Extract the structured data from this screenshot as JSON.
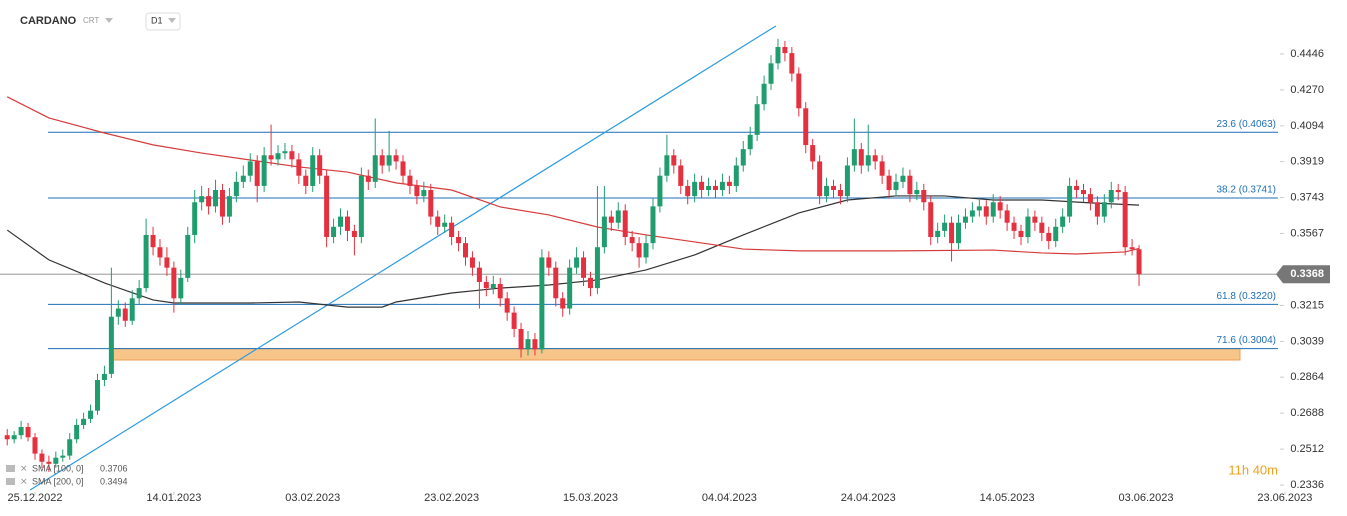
{
  "header": {
    "symbol": "CARDANO",
    "source": "CRT",
    "interval": "D1"
  },
  "chart_data": {
    "type": "candlestick",
    "up_color": "#1f9d6e",
    "down_color": "#e5303f",
    "ohlc": [
      [
        0.258,
        0.261,
        0.253,
        0.256
      ],
      [
        0.256,
        0.26,
        0.254,
        0.258
      ],
      [
        0.258,
        0.265,
        0.256,
        0.262
      ],
      [
        0.262,
        0.264,
        0.255,
        0.257
      ],
      [
        0.257,
        0.259,
        0.246,
        0.249
      ],
      [
        0.249,
        0.251,
        0.242,
        0.245
      ],
      [
        0.245,
        0.248,
        0.24,
        0.244
      ],
      [
        0.244,
        0.25,
        0.242,
        0.247
      ],
      [
        0.247,
        0.251,
        0.245,
        0.248
      ],
      [
        0.248,
        0.259,
        0.246,
        0.256
      ],
      [
        0.256,
        0.266,
        0.254,
        0.263
      ],
      [
        0.263,
        0.269,
        0.261,
        0.266
      ],
      [
        0.266,
        0.273,
        0.264,
        0.27
      ],
      [
        0.27,
        0.288,
        0.268,
        0.285
      ],
      [
        0.285,
        0.292,
        0.282,
        0.288
      ],
      [
        0.288,
        0.34,
        0.286,
        0.316
      ],
      [
        0.316,
        0.324,
        0.312,
        0.32
      ],
      [
        0.32,
        0.323,
        0.311,
        0.314
      ],
      [
        0.314,
        0.329,
        0.312,
        0.325
      ],
      [
        0.325,
        0.334,
        0.322,
        0.33
      ],
      [
        0.33,
        0.364,
        0.328,
        0.356
      ],
      [
        0.356,
        0.36,
        0.346,
        0.35
      ],
      [
        0.35,
        0.354,
        0.341,
        0.345
      ],
      [
        0.345,
        0.35,
        0.336,
        0.34
      ],
      [
        0.34,
        0.343,
        0.318,
        0.325
      ],
      [
        0.325,
        0.339,
        0.322,
        0.335
      ],
      [
        0.335,
        0.36,
        0.333,
        0.356
      ],
      [
        0.356,
        0.378,
        0.352,
        0.372
      ],
      [
        0.372,
        0.38,
        0.368,
        0.375
      ],
      [
        0.375,
        0.379,
        0.366,
        0.37
      ],
      [
        0.37,
        0.383,
        0.367,
        0.378
      ],
      [
        0.378,
        0.381,
        0.361,
        0.365
      ],
      [
        0.365,
        0.379,
        0.362,
        0.375
      ],
      [
        0.375,
        0.387,
        0.372,
        0.382
      ],
      [
        0.382,
        0.39,
        0.379,
        0.385
      ],
      [
        0.385,
        0.396,
        0.382,
        0.392
      ],
      [
        0.392,
        0.395,
        0.372,
        0.38
      ],
      [
        0.38,
        0.399,
        0.377,
        0.395
      ],
      [
        0.395,
        0.41,
        0.39,
        0.393
      ],
      [
        0.393,
        0.4,
        0.39,
        0.396
      ],
      [
        0.396,
        0.401,
        0.393,
        0.397
      ],
      [
        0.397,
        0.4,
        0.389,
        0.393
      ],
      [
        0.393,
        0.396,
        0.381,
        0.385
      ],
      [
        0.385,
        0.388,
        0.376,
        0.38
      ],
      [
        0.38,
        0.399,
        0.377,
        0.395
      ],
      [
        0.395,
        0.398,
        0.381,
        0.385
      ],
      [
        0.385,
        0.388,
        0.35,
        0.355
      ],
      [
        0.355,
        0.364,
        0.352,
        0.36
      ],
      [
        0.36,
        0.369,
        0.356,
        0.365
      ],
      [
        0.365,
        0.368,
        0.353,
        0.358
      ],
      [
        0.358,
        0.361,
        0.346,
        0.355
      ],
      [
        0.355,
        0.389,
        0.352,
        0.385
      ],
      [
        0.385,
        0.388,
        0.378,
        0.382
      ],
      [
        0.382,
        0.413,
        0.379,
        0.395
      ],
      [
        0.395,
        0.398,
        0.386,
        0.39
      ],
      [
        0.39,
        0.407,
        0.387,
        0.395
      ],
      [
        0.395,
        0.398,
        0.388,
        0.392
      ],
      [
        0.392,
        0.395,
        0.381,
        0.385
      ],
      [
        0.385,
        0.388,
        0.376,
        0.38
      ],
      [
        0.38,
        0.383,
        0.371,
        0.375
      ],
      [
        0.375,
        0.382,
        0.372,
        0.378
      ],
      [
        0.378,
        0.381,
        0.361,
        0.365
      ],
      [
        0.365,
        0.368,
        0.356,
        0.36
      ],
      [
        0.36,
        0.366,
        0.357,
        0.362
      ],
      [
        0.362,
        0.365,
        0.351,
        0.355
      ],
      [
        0.355,
        0.358,
        0.348,
        0.352
      ],
      [
        0.352,
        0.355,
        0.341,
        0.345
      ],
      [
        0.345,
        0.348,
        0.336,
        0.34
      ],
      [
        0.34,
        0.343,
        0.32,
        0.333
      ],
      [
        0.333,
        0.336,
        0.326,
        0.33
      ],
      [
        0.33,
        0.336,
        0.327,
        0.332
      ],
      [
        0.332,
        0.335,
        0.321,
        0.325
      ],
      [
        0.325,
        0.328,
        0.314,
        0.318
      ],
      [
        0.318,
        0.321,
        0.306,
        0.31
      ],
      [
        0.31,
        0.313,
        0.296,
        0.3
      ],
      [
        0.3,
        0.309,
        0.297,
        0.305
      ],
      [
        0.305,
        0.308,
        0.297,
        0.3
      ],
      [
        0.3,
        0.349,
        0.298,
        0.345
      ],
      [
        0.345,
        0.348,
        0.336,
        0.34
      ],
      [
        0.34,
        0.343,
        0.321,
        0.325
      ],
      [
        0.325,
        0.328,
        0.316,
        0.32
      ],
      [
        0.32,
        0.344,
        0.317,
        0.34
      ],
      [
        0.34,
        0.35,
        0.337,
        0.345
      ],
      [
        0.345,
        0.348,
        0.331,
        0.335
      ],
      [
        0.335,
        0.338,
        0.326,
        0.33
      ],
      [
        0.33,
        0.38,
        0.327,
        0.35
      ],
      [
        0.35,
        0.38,
        0.347,
        0.365
      ],
      [
        0.365,
        0.368,
        0.358,
        0.362
      ],
      [
        0.362,
        0.372,
        0.359,
        0.368
      ],
      [
        0.368,
        0.371,
        0.351,
        0.355
      ],
      [
        0.355,
        0.358,
        0.348,
        0.352
      ],
      [
        0.352,
        0.355,
        0.34,
        0.345
      ],
      [
        0.345,
        0.356,
        0.342,
        0.352
      ],
      [
        0.352,
        0.374,
        0.349,
        0.37
      ],
      [
        0.37,
        0.389,
        0.367,
        0.385
      ],
      [
        0.385,
        0.405,
        0.382,
        0.395
      ],
      [
        0.395,
        0.398,
        0.386,
        0.39
      ],
      [
        0.39,
        0.393,
        0.376,
        0.38
      ],
      [
        0.38,
        0.383,
        0.371,
        0.375
      ],
      [
        0.375,
        0.386,
        0.372,
        0.382
      ],
      [
        0.382,
        0.385,
        0.374,
        0.378
      ],
      [
        0.378,
        0.384,
        0.375,
        0.38
      ],
      [
        0.38,
        0.383,
        0.374,
        0.378
      ],
      [
        0.378,
        0.386,
        0.375,
        0.382
      ],
      [
        0.382,
        0.385,
        0.376,
        0.38
      ],
      [
        0.38,
        0.394,
        0.377,
        0.39
      ],
      [
        0.39,
        0.402,
        0.387,
        0.398
      ],
      [
        0.398,
        0.409,
        0.395,
        0.405
      ],
      [
        0.405,
        0.424,
        0.402,
        0.42
      ],
      [
        0.42,
        0.434,
        0.417,
        0.43
      ],
      [
        0.43,
        0.444,
        0.427,
        0.44
      ],
      [
        0.44,
        0.452,
        0.437,
        0.448
      ],
      [
        0.448,
        0.451,
        0.441,
        0.445
      ],
      [
        0.445,
        0.448,
        0.431,
        0.435
      ],
      [
        0.435,
        0.438,
        0.414,
        0.418
      ],
      [
        0.418,
        0.421,
        0.396,
        0.4
      ],
      [
        0.4,
        0.403,
        0.388,
        0.392
      ],
      [
        0.392,
        0.395,
        0.371,
        0.375
      ],
      [
        0.375,
        0.384,
        0.372,
        0.38
      ],
      [
        0.38,
        0.383,
        0.374,
        0.378
      ],
      [
        0.378,
        0.381,
        0.371,
        0.375
      ],
      [
        0.375,
        0.394,
        0.372,
        0.39
      ],
      [
        0.39,
        0.413,
        0.387,
        0.398
      ],
      [
        0.398,
        0.401,
        0.386,
        0.39
      ],
      [
        0.39,
        0.41,
        0.387,
        0.395
      ],
      [
        0.395,
        0.398,
        0.388,
        0.392
      ],
      [
        0.392,
        0.395,
        0.381,
        0.385
      ],
      [
        0.385,
        0.388,
        0.374,
        0.378
      ],
      [
        0.378,
        0.386,
        0.375,
        0.382
      ],
      [
        0.382,
        0.389,
        0.379,
        0.385
      ],
      [
        0.385,
        0.388,
        0.372,
        0.376
      ],
      [
        0.376,
        0.382,
        0.373,
        0.378
      ],
      [
        0.378,
        0.381,
        0.368,
        0.372
      ],
      [
        0.372,
        0.375,
        0.351,
        0.355
      ],
      [
        0.355,
        0.362,
        0.352,
        0.358
      ],
      [
        0.358,
        0.366,
        0.355,
        0.362
      ],
      [
        0.362,
        0.365,
        0.343,
        0.352
      ],
      [
        0.352,
        0.366,
        0.349,
        0.362
      ],
      [
        0.362,
        0.369,
        0.359,
        0.365
      ],
      [
        0.365,
        0.372,
        0.362,
        0.368
      ],
      [
        0.368,
        0.374,
        0.365,
        0.37
      ],
      [
        0.37,
        0.373,
        0.361,
        0.365
      ],
      [
        0.365,
        0.376,
        0.362,
        0.372
      ],
      [
        0.372,
        0.375,
        0.364,
        0.368
      ],
      [
        0.368,
        0.371,
        0.358,
        0.362
      ],
      [
        0.362,
        0.365,
        0.354,
        0.358
      ],
      [
        0.358,
        0.361,
        0.351,
        0.355
      ],
      [
        0.355,
        0.369,
        0.352,
        0.365
      ],
      [
        0.365,
        0.368,
        0.358,
        0.362
      ],
      [
        0.362,
        0.365,
        0.353,
        0.357
      ],
      [
        0.357,
        0.36,
        0.349,
        0.353
      ],
      [
        0.353,
        0.364,
        0.35,
        0.36
      ],
      [
        0.36,
        0.369,
        0.357,
        0.365
      ],
      [
        0.365,
        0.384,
        0.362,
        0.38
      ],
      [
        0.38,
        0.383,
        0.374,
        0.378
      ],
      [
        0.378,
        0.381,
        0.372,
        0.376
      ],
      [
        0.376,
        0.379,
        0.368,
        0.372
      ],
      [
        0.372,
        0.375,
        0.361,
        0.365
      ],
      [
        0.365,
        0.376,
        0.362,
        0.372
      ],
      [
        0.372,
        0.382,
        0.369,
        0.378
      ],
      [
        0.378,
        0.381,
        0.373,
        0.377
      ],
      [
        0.377,
        0.38,
        0.346,
        0.35
      ],
      [
        0.35,
        0.354,
        0.346,
        0.349
      ],
      [
        0.349,
        0.351,
        0.331,
        0.3368
      ]
    ],
    "series": [
      {
        "name": "SMA [100, 0]",
        "color": "#333333",
        "last": 0.3706,
        "x": [
          0,
          6,
          14,
          21,
          24,
          35,
          42,
          49,
          54,
          56,
          64,
          71,
          78,
          85,
          92,
          99,
          106,
          114,
          121,
          128,
          135,
          142,
          149,
          156,
          163
        ],
        "values": [
          0.3584,
          0.3438,
          0.3325,
          0.3242,
          0.3227,
          0.3227,
          0.3232,
          0.3207,
          0.3207,
          0.3232,
          0.3276,
          0.33,
          0.3315,
          0.334,
          0.3389,
          0.3462,
          0.356,
          0.3668,
          0.3731,
          0.3751,
          0.3751,
          0.3731,
          0.3731,
          0.3717,
          0.3706
        ]
      },
      {
        "name": "SMA [200, 0]",
        "color": "#d63b3b",
        "last": 0.3494,
        "x": [
          0,
          6,
          14,
          21,
          28,
          35,
          42,
          49,
          56,
          64,
          71,
          78,
          85,
          92,
          99,
          106,
          114,
          128,
          142,
          149,
          154,
          161,
          163
        ],
        "values": [
          0.4236,
          0.4133,
          0.4059,
          0.4001,
          0.3961,
          0.3927,
          0.3893,
          0.3868,
          0.3815,
          0.378,
          0.3697,
          0.3658,
          0.3599,
          0.356,
          0.3526,
          0.3491,
          0.3482,
          0.3482,
          0.3486,
          0.3472,
          0.3467,
          0.3477,
          0.3494
        ]
      }
    ],
    "trendline": {
      "color": "#2b9be0",
      "x": [
        3.3,
        110.7
      ],
      "values": [
        0.2312,
        0.4583
      ]
    },
    "fib_levels": [
      {
        "value": 0.4063,
        "label": "23.6 (0.4063)"
      },
      {
        "value": 0.3741,
        "label": "38.2 (0.3741)"
      },
      {
        "value": 0.322,
        "label": "61.8 (0.3220)"
      },
      {
        "value": 0.3004,
        "label": "71.6 (0.3004)"
      }
    ],
    "fib_color": "#1e6fb8",
    "zone": [
      0.2948,
      0.3004
    ],
    "zone_color": "#f7c58a",
    "last_price": 0.3368,
    "timer": "11h 40m",
    "xlim": [
      -1.04,
      183.3
    ],
    "ylim": [
      0.2302,
      0.471
    ],
    "xticks": [
      {
        "value": 4,
        "label": "25.12.2022"
      },
      {
        "value": 24,
        "label": "14.01.2023"
      },
      {
        "value": 44,
        "label": "03.02.2023"
      },
      {
        "value": 64,
        "label": "23.02.2023"
      },
      {
        "value": 84,
        "label": "15.03.2023"
      },
      {
        "value": 104,
        "label": "04.04.2023"
      },
      {
        "value": 124,
        "label": "24.04.2023"
      },
      {
        "value": 144,
        "label": "14.05.2023"
      },
      {
        "value": 164,
        "label": "03.06.2023"
      },
      {
        "value": 184,
        "label": "23.06.2023"
      }
    ],
    "yticks": [
      0.4446,
      {
        "value": 0.427,
        "label": "0.4270"
      },
      0.4094,
      0.3919,
      0.3743,
      0.3567,
      0.3215,
      0.3039,
      0.2864,
      0.2688,
      0.2512,
      0.2336
    ]
  }
}
